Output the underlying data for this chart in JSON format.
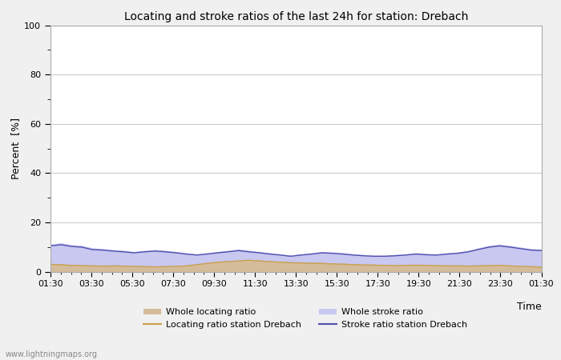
{
  "title": "Locating and stroke ratios of the last 24h for station: Drebach",
  "xlabel": "Time",
  "ylabel": "Percent  [%]",
  "xlim": [
    0,
    48
  ],
  "ylim": [
    0,
    100
  ],
  "yticks": [
    0,
    20,
    40,
    60,
    80,
    100
  ],
  "xtick_labels": [
    "01:30",
    "03:30",
    "05:30",
    "07:30",
    "09:30",
    "11:30",
    "13:30",
    "15:30",
    "17:30",
    "19:30",
    "21:30",
    "23:30",
    "01:30"
  ],
  "background_color": "#f0f0f0",
  "plot_bg_color": "#ffffff",
  "grid_color": "#cccccc",
  "watermark": "www.lightningmaps.org",
  "legend": [
    {
      "label": "Whole locating ratio",
      "color": "#d4bc9b",
      "type": "fill"
    },
    {
      "label": "Locating ratio station Drebach",
      "color": "#c8a050",
      "type": "line"
    },
    {
      "label": "Whole stroke ratio",
      "color": "#c8c8f0",
      "type": "fill"
    },
    {
      "label": "Stroke ratio station Drebach",
      "color": "#5050b0",
      "type": "line"
    }
  ],
  "whole_locating_ratio": [
    3.2,
    3.0,
    2.8,
    2.6,
    2.5,
    2.4,
    2.5,
    2.4,
    2.3,
    2.2,
    2.1,
    2.2,
    2.3,
    2.5,
    3.0,
    3.5,
    4.0,
    4.2,
    4.5,
    4.8,
    4.5,
    4.2,
    4.0,
    3.8,
    3.7,
    3.6,
    3.5,
    3.3,
    3.2,
    3.0,
    2.9,
    2.8,
    2.7,
    2.6,
    2.7,
    2.8,
    2.7,
    2.6,
    2.5,
    2.5,
    2.4,
    2.5,
    2.6,
    2.7,
    2.5,
    2.3,
    2.2,
    2.0
  ],
  "whole_stroke_ratio": [
    11.0,
    11.5,
    10.8,
    10.5,
    9.5,
    9.2,
    8.8,
    8.5,
    8.0,
    8.5,
    8.8,
    8.5,
    8.0,
    7.5,
    7.0,
    7.5,
    8.0,
    8.5,
    9.0,
    8.5,
    8.0,
    7.5,
    7.0,
    6.5,
    7.0,
    7.5,
    8.0,
    7.8,
    7.5,
    7.0,
    6.8,
    6.5,
    6.5,
    6.8,
    7.0,
    7.5,
    7.2,
    7.0,
    7.5,
    7.8,
    8.5,
    9.5,
    10.5,
    11.0,
    10.5,
    9.8,
    9.2,
    9.0
  ],
  "locating_ratio_station": [
    3.0,
    2.8,
    2.6,
    2.5,
    2.4,
    2.3,
    2.4,
    2.3,
    2.2,
    2.1,
    2.0,
    2.1,
    2.2,
    2.4,
    2.9,
    3.4,
    3.9,
    4.1,
    4.4,
    4.7,
    4.4,
    4.1,
    3.9,
    3.7,
    3.6,
    3.5,
    3.4,
    3.2,
    3.1,
    2.9,
    2.8,
    2.7,
    2.6,
    2.5,
    2.6,
    2.7,
    2.6,
    2.5,
    2.4,
    2.4,
    2.3,
    2.4,
    2.5,
    2.6,
    2.4,
    2.2,
    2.1,
    1.9
  ],
  "stroke_ratio_station": [
    10.5,
    11.0,
    10.3,
    10.0,
    9.0,
    8.8,
    8.4,
    8.1,
    7.7,
    8.1,
    8.4,
    8.1,
    7.7,
    7.2,
    6.8,
    7.2,
    7.7,
    8.1,
    8.6,
    8.1,
    7.7,
    7.2,
    6.8,
    6.3,
    6.8,
    7.2,
    7.7,
    7.5,
    7.2,
    6.8,
    6.5,
    6.3,
    6.3,
    6.5,
    6.8,
    7.2,
    6.9,
    6.8,
    7.2,
    7.5,
    8.1,
    9.1,
    10.0,
    10.5,
    10.0,
    9.4,
    8.8,
    8.6
  ]
}
